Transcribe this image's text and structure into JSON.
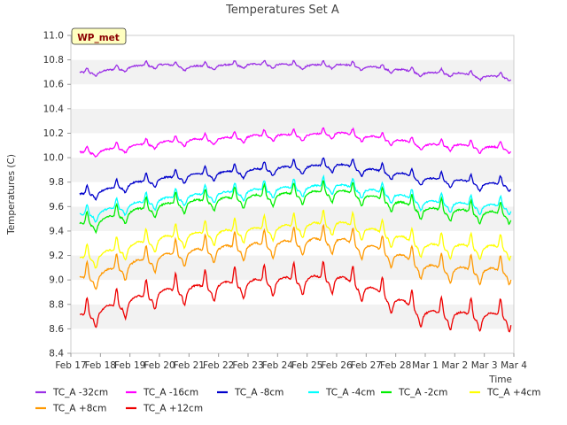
{
  "chart_data": {
    "type": "line",
    "title": "Temperatures Set A",
    "xlabel": "Time",
    "ylabel": "Temperatures (C)",
    "ylim": [
      8.4,
      11.0
    ],
    "yticks": [
      "8.4",
      "8.6",
      "8.8",
      "9.0",
      "9.2",
      "9.4",
      "9.6",
      "9.8",
      "10.0",
      "10.2",
      "10.4",
      "10.6",
      "10.8",
      "11.0"
    ],
    "xticks": [
      "Feb 17",
      "Feb 18",
      "Feb 19",
      "Feb 20",
      "Feb 21",
      "Feb 22",
      "Feb 23",
      "Feb 24",
      "Feb 25",
      "Feb 26",
      "Feb 27",
      "Feb 28",
      "Mar 1",
      "Mar 2",
      "Mar 3",
      "Mar 4"
    ],
    "x": [
      "Feb 17",
      "Feb 18",
      "Feb 19",
      "Feb 20",
      "Feb 21",
      "Feb 22",
      "Feb 23",
      "Feb 24",
      "Feb 25",
      "Feb 26",
      "Feb 27",
      "Feb 28",
      "Mar 1",
      "Mar 2",
      "Mar 3"
    ],
    "x_extent": [
      0,
      15
    ],
    "series_x_range": [
      0.3,
      14.9
    ],
    "grid": "horizontal bands",
    "badge": "WP_met",
    "legend_position": "bottom",
    "series": [
      {
        "name": "TC_A -32cm",
        "color": "#9b30e6",
        "values": [
          10.69,
          10.7,
          10.74,
          10.76,
          10.74,
          10.75,
          10.76,
          10.76,
          10.75,
          10.76,
          10.74,
          10.72,
          10.69,
          10.69,
          10.66
        ]
      },
      {
        "name": "TC_A -16cm",
        "color": "#ff00ff",
        "values": [
          10.03,
          10.05,
          10.09,
          10.12,
          10.14,
          10.15,
          10.17,
          10.18,
          10.18,
          10.2,
          10.17,
          10.14,
          10.1,
          10.1,
          10.08
        ]
      },
      {
        "name": "TC_A -8cm",
        "color": "#0000cc",
        "values": [
          9.68,
          9.72,
          9.78,
          9.82,
          9.85,
          9.87,
          9.89,
          9.91,
          9.92,
          9.94,
          9.9,
          9.87,
          9.82,
          9.81,
          9.78
        ]
      },
      {
        "name": "TC_A -4cm",
        "color": "#00ffff",
        "values": [
          9.51,
          9.55,
          9.61,
          9.65,
          9.68,
          9.7,
          9.72,
          9.74,
          9.75,
          9.77,
          9.73,
          9.69,
          9.63,
          9.62,
          9.6
        ]
      },
      {
        "name": "TC_A -2cm",
        "color": "#00ee00",
        "values": [
          9.43,
          9.48,
          9.55,
          9.6,
          9.63,
          9.65,
          9.67,
          9.69,
          9.7,
          9.72,
          9.68,
          9.63,
          9.57,
          9.56,
          9.54
        ]
      },
      {
        "name": "TC_A +4cm",
        "color": "#ffff00",
        "values": [
          9.15,
          9.2,
          9.27,
          9.33,
          9.36,
          9.38,
          9.4,
          9.42,
          9.44,
          9.46,
          9.41,
          9.35,
          9.27,
          9.27,
          9.26
        ]
      },
      {
        "name": "TC_A +8cm",
        "color": "#ff9900",
        "values": [
          8.98,
          9.04,
          9.12,
          9.18,
          9.22,
          9.25,
          9.27,
          9.29,
          9.31,
          9.32,
          9.27,
          9.2,
          9.1,
          9.08,
          9.07
        ]
      },
      {
        "name": "TC_A +12cm",
        "color": "#ee0000",
        "values": [
          8.67,
          8.74,
          8.82,
          8.89,
          8.92,
          8.95,
          8.97,
          8.99,
          9.0,
          9.01,
          8.93,
          8.83,
          8.72,
          8.71,
          8.7
        ]
      }
    ]
  }
}
